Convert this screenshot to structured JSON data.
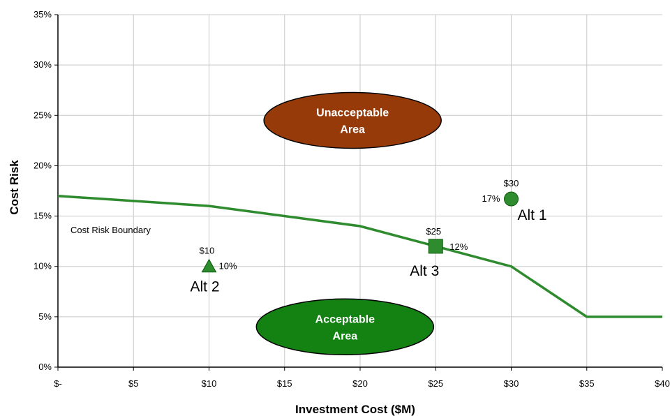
{
  "chart_data": {
    "type": "scatter",
    "xlabel": "Investment Cost ($M)",
    "ylabel": "Cost Risk",
    "xlim": [
      0,
      40
    ],
    "ylim": [
      0,
      35
    ],
    "x_ticks": [
      {
        "value": 0,
        "label": "$-"
      },
      {
        "value": 5,
        "label": "$5"
      },
      {
        "value": 10,
        "label": "$10"
      },
      {
        "value": 15,
        "label": "$15"
      },
      {
        "value": 20,
        "label": "$20"
      },
      {
        "value": 25,
        "label": "$25"
      },
      {
        "value": 30,
        "label": "$30"
      },
      {
        "value": 35,
        "label": "$35"
      },
      {
        "value": 40,
        "label": "$40"
      }
    ],
    "y_ticks": [
      {
        "value": 0,
        "label": "0%"
      },
      {
        "value": 5,
        "label": "5%"
      },
      {
        "value": 10,
        "label": "10%"
      },
      {
        "value": 15,
        "label": "15%"
      },
      {
        "value": 20,
        "label": "20%"
      },
      {
        "value": 25,
        "label": "25%"
      },
      {
        "value": 30,
        "label": "30%"
      },
      {
        "value": 35,
        "label": "35%"
      }
    ],
    "grid": true,
    "boundary": {
      "label": "Cost Risk Boundary",
      "color": "#2e8b2e",
      "points": [
        [
          0,
          17
        ],
        [
          10,
          16
        ],
        [
          20,
          14
        ],
        [
          25,
          12
        ],
        [
          30,
          10
        ],
        [
          35,
          5
        ],
        [
          40,
          5
        ]
      ]
    },
    "alternatives": [
      {
        "name": "Alt 1",
        "x": 30,
        "y": 16.7,
        "marker": "circle",
        "cost_label": "$30",
        "risk_label": "17%"
      },
      {
        "name": "Alt 2",
        "x": 10,
        "y": 10,
        "marker": "triangle",
        "cost_label": "$10",
        "risk_label": "10%"
      },
      {
        "name": "Alt 3",
        "x": 25,
        "y": 12,
        "marker": "square",
        "cost_label": "$25",
        "risk_label": "12%"
      }
    ],
    "marker_color": "#2e8b2e",
    "areas": [
      {
        "name": "unacceptable-area",
        "lines": [
          "Unacceptable",
          "Area"
        ],
        "cx": 19.5,
        "cy": 24.5,
        "color": "#963a0a"
      },
      {
        "name": "acceptable-area",
        "lines": [
          "Acceptable",
          "Area"
        ],
        "cx": 19,
        "cy": 4,
        "color": "#138213"
      }
    ]
  }
}
